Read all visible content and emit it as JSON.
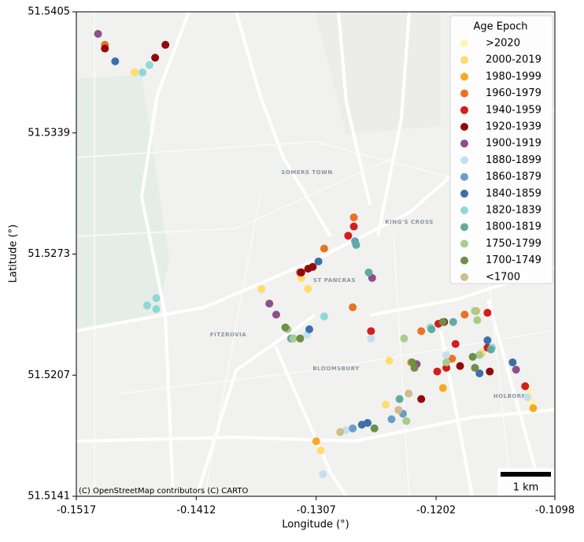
{
  "chart_data": {
    "type": "scatter",
    "xlabel": "Longitude (°)",
    "ylabel": "Latitude (°)",
    "xlim": [
      -0.1517,
      -0.1098
    ],
    "ylim": [
      51.5141,
      51.5405
    ],
    "xticks": [
      -0.1517,
      -0.1412,
      -0.1307,
      -0.1202,
      -0.1098
    ],
    "yticks": [
      51.5141,
      51.5207,
      51.5273,
      51.5339,
      51.5405
    ],
    "legend_title": "Age Epoch",
    "legend_position": "upper right",
    "map_labels": [
      "SOMERS TOWN",
      "KING'S CROSS",
      "ST PANCRAS",
      "FITZROVIA",
      "BLOOMSBURY",
      "HOLBORN"
    ],
    "attribution": "(C) OpenStreetMap contributors (C) CARTO",
    "scale_label": "1 km",
    "series": [
      {
        "name": ">2020",
        "color": "#fff5b0",
        "x": [
          -0.1121,
          -0.1119
        ],
        "values": [
          51.5198,
          51.5193
        ]
      },
      {
        "name": "2000-2019",
        "color": "#fedc6e",
        "x": [
          -0.1466,
          -0.132,
          -0.1314,
          -0.1355,
          -0.1303,
          -0.1246,
          -0.1243,
          -0.1162
        ],
        "values": [
          51.5372,
          51.526,
          51.5254,
          51.5254,
          51.5166,
          51.5191,
          51.5215,
          51.5219
        ]
      },
      {
        "name": "1980-1999",
        "color": "#f9a825",
        "x": [
          -0.1307,
          -0.1196,
          -0.1224,
          -0.1117,
          -0.1167
        ],
        "values": [
          51.5171,
          51.52,
          51.5214,
          51.5189,
          51.5242
        ]
      },
      {
        "name": "1960-1979",
        "color": "#ec7124",
        "x": [
          -0.1492,
          -0.1274,
          -0.13,
          -0.1275,
          -0.1215,
          -0.1177,
          -0.1188
        ],
        "values": [
          51.5387,
          51.5293,
          51.5276,
          51.5244,
          51.5231,
          51.524,
          51.5216
        ]
      },
      {
        "name": "1940-1959",
        "color": "#d41d1d",
        "x": [
          -0.1274,
          -0.1279,
          -0.1321,
          -0.1259,
          -0.1201,
          -0.12,
          -0.1157,
          -0.1157,
          -0.1193,
          -0.1124,
          -0.1185
        ],
        "values": [
          51.5288,
          51.5283,
          51.5263,
          51.5231,
          51.5209,
          51.5235,
          51.5241,
          51.5222,
          51.5211,
          51.5201,
          51.5224
        ]
      },
      {
        "name": "1920-1939",
        "color": "#900c0c",
        "x": [
          -0.1492,
          -0.1439,
          -0.1448,
          -0.132,
          -0.1314,
          -0.131,
          -0.1215,
          -0.1195,
          -0.1155,
          -0.1181
        ],
        "values": [
          51.5385,
          51.5387,
          51.538,
          51.5263,
          51.5265,
          51.5266,
          51.5194,
          51.5236,
          51.5209,
          51.5212
        ]
      },
      {
        "name": "1900-1919",
        "color": "#8e4f8a",
        "x": [
          -0.1498,
          -0.1348,
          -0.1342,
          -0.1258,
          -0.1132,
          -0.1219
        ],
        "values": [
          51.5393,
          51.5246,
          51.524,
          51.526,
          51.521,
          51.5213
        ]
      },
      {
        "name": "1880-1899",
        "color": "#c5dff0",
        "x": [
          -0.1301,
          -0.1259,
          -0.1193,
          -0.1315,
          -0.1122,
          -0.1281
        ],
        "values": [
          51.5153,
          51.5227,
          51.5218,
          51.5229,
          51.5195,
          51.5177
        ]
      },
      {
        "name": "1860-1879",
        "color": "#6b9ec4",
        "x": [
          -0.1241,
          -0.1231,
          -0.1329,
          -0.1273,
          -0.1275
        ],
        "values": [
          51.5183,
          51.5186,
          51.5227,
          51.528,
          51.5178
        ]
      },
      {
        "name": "1840-1859",
        "color": "#3b70a8",
        "x": [
          -0.1483,
          -0.1305,
          -0.1313,
          -0.1267,
          -0.1262,
          -0.1157,
          -0.1164,
          -0.1135
        ],
        "values": [
          51.5378,
          51.5269,
          51.5232,
          51.518,
          51.5181,
          51.5226,
          51.5208,
          51.5214
        ]
      },
      {
        "name": "1820-1839",
        "color": "#8ed9d4",
        "x": [
          -0.1453,
          -0.1459,
          -0.1455,
          -0.1447,
          -0.1447,
          -0.13,
          -0.1153,
          -0.1207
        ],
        "values": [
          51.5376,
          51.5372,
          51.5245,
          51.5249,
          51.5243,
          51.5239,
          51.5222,
          51.5233
        ]
      },
      {
        "name": "1800-1819",
        "color": "#62aaa2",
        "x": [
          -0.1272,
          -0.1261,
          -0.1234,
          -0.1206,
          -0.1154,
          -0.1187
        ],
        "values": [
          51.5278,
          51.5263,
          51.5194,
          51.5232,
          51.5221,
          51.5236
        ]
      },
      {
        "name": "1750-1799",
        "color": "#a9cb8c",
        "x": [
          -0.1332,
          -0.1327,
          -0.123,
          -0.1228,
          -0.1193,
          -0.1168,
          -0.1166,
          -0.1164
        ],
        "values": [
          51.5232,
          51.5227,
          51.5227,
          51.5182,
          51.5214,
          51.5242,
          51.5237,
          51.5218
        ]
      },
      {
        "name": "1700-1749",
        "color": "#6d8f47",
        "x": [
          -0.1334,
          -0.1321,
          -0.1256,
          -0.1221,
          -0.1223,
          -0.1196,
          -0.117,
          -0.1168
        ],
        "values": [
          51.5233,
          51.5227,
          51.5178,
          51.5211,
          51.5214,
          51.5236,
          51.5217,
          51.5211
        ]
      },
      {
        "name": "<1700",
        "color": "#d0bc8c",
        "x": [
          -0.1286,
          -0.1226,
          -0.1235
        ],
        "values": [
          51.5176,
          51.5197,
          51.5188
        ]
      }
    ]
  }
}
